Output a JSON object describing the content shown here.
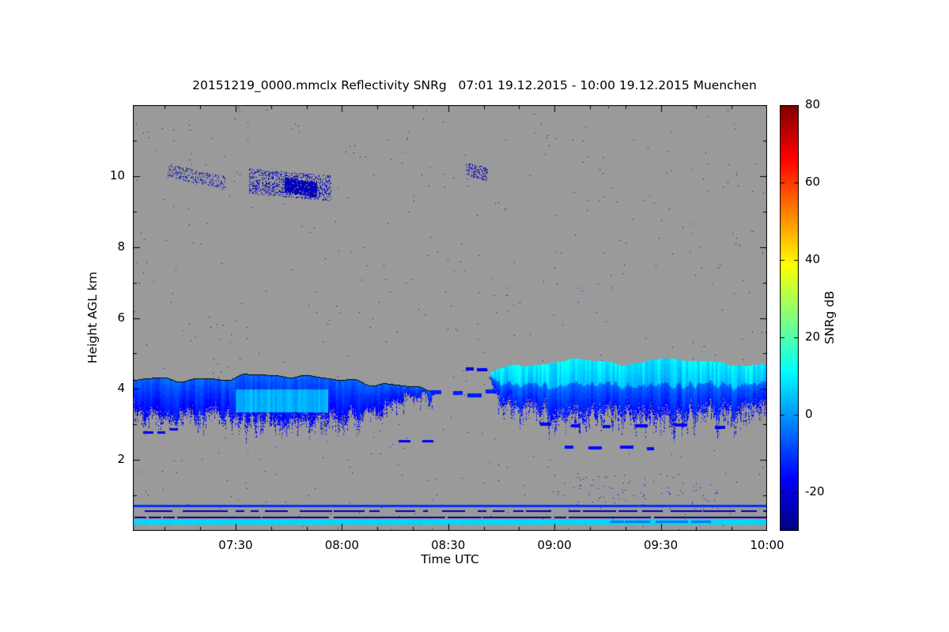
{
  "chart_data": {
    "type": "heatmap",
    "title": "20151219_0000.mmclx Reflectivity SNRg   07:01 19.12.2015 - 10:00 19.12.2015 Muenchen",
    "file": "20151219_0000.mmclx",
    "quantity": "Reflectivity SNRg",
    "time_start": "07:01",
    "time_end": "10:00",
    "date": "19.12.2015",
    "location": "Muenchen",
    "xlabel": "Time UTC",
    "ylabel": "Height AGL km",
    "colorbar_label": "SNRg dB",
    "x_range_minutes": [
      421,
      600
    ],
    "x_ticks": [
      {
        "label": "07:30",
        "minutes": 450
      },
      {
        "label": "08:00",
        "minutes": 480
      },
      {
        "label": "08:30",
        "minutes": 510
      },
      {
        "label": "09:00",
        "minutes": 540
      },
      {
        "label": "09:30",
        "minutes": 570
      },
      {
        "label": "10:00",
        "minutes": 600
      }
    ],
    "y_range_km": [
      0,
      12
    ],
    "y_ticks_km": [
      2,
      4,
      6,
      8,
      10
    ],
    "colorbar": {
      "range_db": [
        -30,
        80
      ],
      "ticks_db": [
        80,
        60,
        40,
        20,
        0,
        -20
      ],
      "colormap": "jet"
    },
    "no_signal_color": "#9a9a9a",
    "features": [
      {
        "kind": "noise",
        "seed": 11,
        "density": 0.0012,
        "db": [
          -27,
          -17
        ]
      },
      {
        "kind": "specks",
        "seed": 21,
        "t0": 431,
        "t1": 447,
        "hc0": 10.15,
        "hc1": 9.8,
        "half_width_km": 0.18,
        "density": 0.22,
        "db": [
          -27,
          -21
        ]
      },
      {
        "kind": "specks",
        "seed": 22,
        "t0": 454,
        "t1": 477,
        "hc0": 9.85,
        "hc1": 9.65,
        "half_width_km": 0.35,
        "density": 0.28,
        "db": [
          -27,
          -20
        ]
      },
      {
        "kind": "specks",
        "seed": 23,
        "t0": 464,
        "t1": 473,
        "hc0": 9.75,
        "hc1": 9.6,
        "half_width_km": 0.2,
        "density": 0.85,
        "db": [
          -26,
          -21
        ]
      },
      {
        "kind": "specks",
        "seed": 24,
        "t0": 515,
        "t1": 521,
        "hc0": 10.2,
        "hc1": 10.05,
        "half_width_km": 0.18,
        "density": 0.3,
        "db": [
          -27,
          -21
        ]
      },
      {
        "kind": "specks",
        "seed": 25,
        "t0": 538,
        "t1": 586,
        "hc0": 1.1,
        "hc1": 1.1,
        "half_width_km": 0.5,
        "density": 0.012,
        "db": [
          -26,
          -19
        ]
      },
      {
        "kind": "layer",
        "seed": 31,
        "t0": 421,
        "t1": 506,
        "top_pts": [
          [
            421,
            4.2
          ],
          [
            438,
            4.3
          ],
          [
            468,
            4.35
          ],
          [
            486,
            4.2
          ],
          [
            498,
            4.02
          ],
          [
            506,
            3.95
          ]
        ],
        "base_pts": [
          [
            421,
            3.55
          ],
          [
            428,
            3.05
          ],
          [
            444,
            3.2
          ],
          [
            458,
            3.0
          ],
          [
            472,
            3.1
          ],
          [
            486,
            3.3
          ],
          [
            498,
            3.72
          ],
          [
            506,
            3.82
          ]
        ],
        "top_jit": 0.1,
        "base_jit": 0.5,
        "db_top": -5,
        "db_base": -17,
        "tail_km": 0.45,
        "patches": [
          {
            "t0": 450,
            "t1": 476,
            "h0": 3.35,
            "h1": 4.0,
            "db": 3
          }
        ]
      },
      {
        "kind": "layer",
        "seed": 32,
        "t0": 522,
        "t1": 600,
        "top_pts": [
          [
            522,
            4.42
          ],
          [
            527,
            4.58
          ],
          [
            534,
            4.7
          ],
          [
            544,
            4.78
          ],
          [
            558,
            4.7
          ],
          [
            572,
            4.78
          ],
          [
            588,
            4.7
          ],
          [
            600,
            4.74
          ]
        ],
        "base_pts": [
          [
            522,
            4.05
          ],
          [
            526,
            3.6
          ],
          [
            533,
            3.38
          ],
          [
            542,
            3.28
          ],
          [
            552,
            3.22
          ],
          [
            562,
            3.35
          ],
          [
            572,
            3.18
          ],
          [
            582,
            3.3
          ],
          [
            592,
            3.22
          ],
          [
            600,
            3.3
          ]
        ],
        "top_jit": 0.08,
        "base_jit": 0.55,
        "db_top": -4,
        "db_base": -16,
        "tail_km": 0.5,
        "bright_frac": 0.42,
        "db_bright": 10
      },
      {
        "kind": "dashes",
        "seed": 41,
        "t0": 505,
        "t1": 528,
        "h": 3.86,
        "len": 3,
        "gap": 2.5,
        "thick_km": 0.12,
        "db": -13,
        "h_jit": 0.06
      },
      {
        "kind": "dashes",
        "seed": 42,
        "t0": 515,
        "t1": 523,
        "h": 4.54,
        "len": 2.2,
        "gap": 1.6,
        "thick_km": 0.09,
        "db": -18,
        "h_jit": 0.03
      },
      {
        "kind": "dashes",
        "seed": 43,
        "t0": 536,
        "t1": 588,
        "h": 2.95,
        "len": 3.5,
        "gap": 7,
        "thick_km": 0.08,
        "db": -17,
        "h_jit": 0.05
      },
      {
        "kind": "dashes",
        "seed": 44,
        "t0": 543,
        "t1": 568,
        "h": 2.33,
        "len": 3,
        "gap": 4.5,
        "thick_km": 0.08,
        "db": -15,
        "h_jit": 0.04
      },
      {
        "kind": "dashes",
        "seed": 45,
        "t0": 424,
        "t1": 434,
        "h": 2.8,
        "len": 2,
        "gap": 2,
        "thick_km": 0.06,
        "db": -18,
        "h_jit": 0.05
      },
      {
        "kind": "dashes",
        "seed": 46,
        "t0": 496,
        "t1": 508,
        "h": 2.55,
        "len": 2.5,
        "gap": 2.5,
        "thick_km": 0.06,
        "db": -18,
        "h_jit": 0.05
      },
      {
        "kind": "stripe",
        "seed": 51,
        "t0": 421,
        "t1": 600,
        "h": 0.69,
        "thick_km": 0.07,
        "db": -11,
        "gap": 0
      },
      {
        "kind": "stripe",
        "seed": 52,
        "t0": 421,
        "t1": 600,
        "h": 0.54,
        "thick_km": 0.05,
        "db": -24,
        "gap": 0.3
      },
      {
        "kind": "stripe",
        "seed": 53,
        "t0": 421,
        "t1": 600,
        "h": 0.37,
        "thick_km": 0.045,
        "db": -26,
        "gap": 0.1
      },
      {
        "kind": "stripe",
        "seed": 54,
        "t0": 421,
        "t1": 600,
        "h": 0.235,
        "thick_km": 0.13,
        "db": 7,
        "gap": 0
      },
      {
        "kind": "stripe",
        "seed": 55,
        "t0": 556,
        "t1": 584,
        "h": 0.235,
        "thick_km": 0.06,
        "db": -3,
        "gap": 0.2
      }
    ]
  }
}
